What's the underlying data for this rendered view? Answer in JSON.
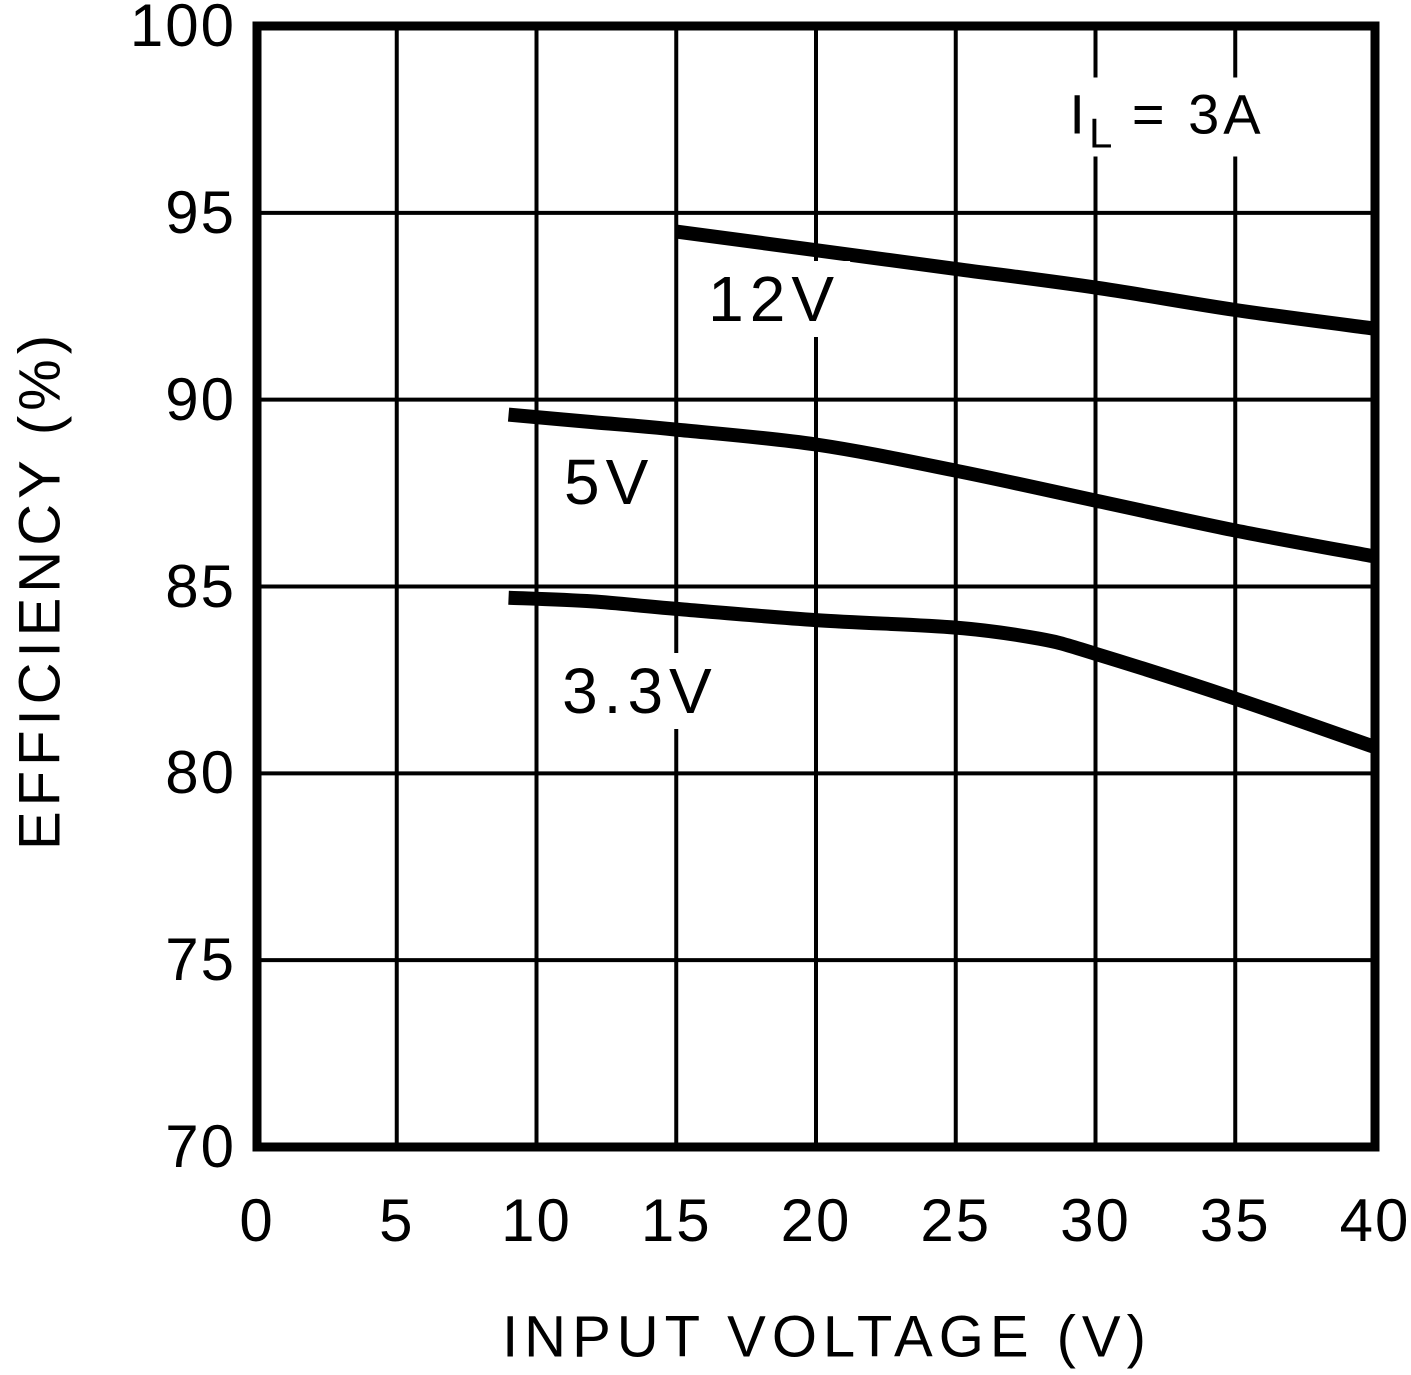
{
  "page": {
    "background": "#ffffff",
    "foreground": "#000000"
  },
  "chart_data": {
    "type": "line",
    "title": "",
    "xlabel": "INPUT VOLTAGE (V)",
    "ylabel": "EFFICIENCY (%)",
    "xlim": [
      0,
      40
    ],
    "ylim": [
      70,
      100
    ],
    "x_ticks": [
      0,
      5,
      10,
      15,
      20,
      25,
      30,
      35,
      40
    ],
    "y_ticks": [
      70,
      75,
      80,
      85,
      90,
      95,
      100
    ],
    "grid": "on",
    "legend_position": "labels-next-to-curves",
    "line_color": "#000000",
    "annotation": {
      "base": "I",
      "sub": "L",
      "rest": "= 3A",
      "x": 32.5,
      "y": 97.6
    },
    "series": [
      {
        "name": "12V",
        "x": [
          15,
          20,
          25,
          30,
          35,
          40
        ],
        "y": [
          94.5,
          94.0,
          93.5,
          93.0,
          92.4,
          91.9
        ],
        "label_x": 18.5,
        "label_y": 92.7
      },
      {
        "name": "5V",
        "x": [
          9,
          12,
          15,
          20,
          25,
          30,
          35,
          40
        ],
        "y": [
          89.6,
          89.4,
          89.2,
          88.8,
          88.1,
          87.3,
          86.5,
          85.8
        ],
        "label_x": 12.6,
        "label_y": 87.8
      },
      {
        "name": "3.3V",
        "x": [
          9,
          12,
          15,
          20,
          25,
          28,
          30,
          35,
          40
        ],
        "y": [
          84.7,
          84.6,
          84.4,
          84.1,
          83.9,
          83.6,
          83.2,
          82.0,
          80.7
        ],
        "label_x": 13.7,
        "label_y": 82.2
      }
    ]
  }
}
